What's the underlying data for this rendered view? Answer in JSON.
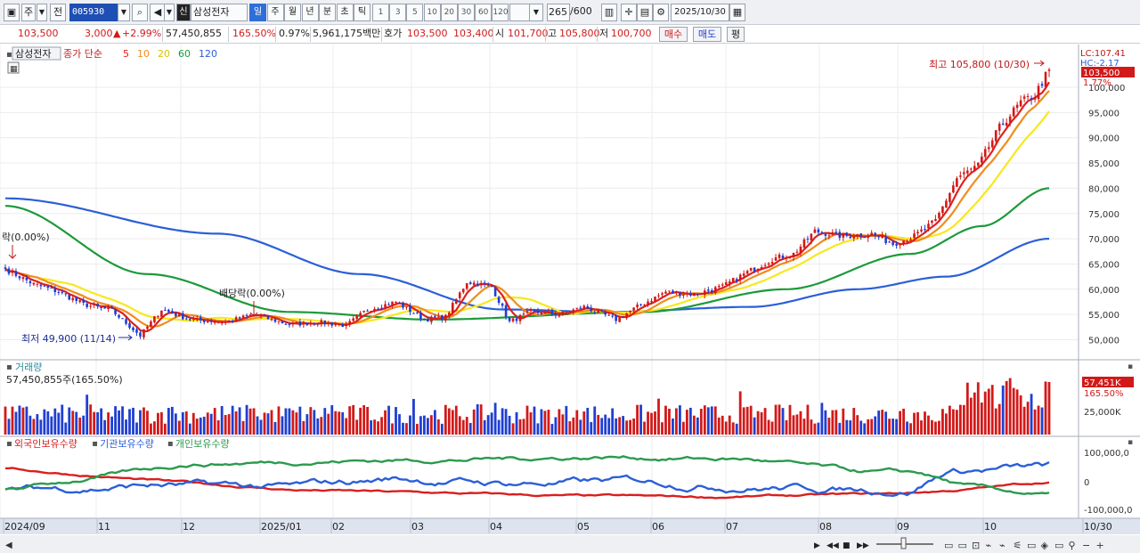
{
  "toolbar": {
    "period_prefix": "주",
    "prev_label": "전",
    "code": "005930",
    "name_badge": "신",
    "name": "삼성전자",
    "periods": [
      "일",
      "주",
      "월",
      "년",
      "분",
      "초",
      "틱"
    ],
    "active_period": "일",
    "intervals": [
      "1",
      "3",
      "5",
      "10",
      "20",
      "30",
      "60",
      "120"
    ],
    "count": "265",
    "count_total": "/600",
    "date": "2025/10/30",
    "icons": [
      "layout-icon",
      "search-icon",
      "speaker-icon",
      "chart-type-icon",
      "crosshair-icon",
      "save-icon",
      "gear-icon",
      "calendar-icon"
    ]
  },
  "quote": {
    "price": "103,500",
    "change": "3,000",
    "change_arrow": "▲",
    "change_pct": "+2.99%",
    "volume": "57,450,855",
    "volume_pct": "165.50%",
    "turnover_pct": "0.97%",
    "amount": "5,961,175백만",
    "ask_label": "호가",
    "ask": "103,500",
    "bid": "103,400",
    "open_label": "시",
    "open": "101,700",
    "high_label": "고",
    "high": "105,800",
    "low_label": "저",
    "low": "100,700",
    "buy_label": "매수",
    "sell_label": "매도",
    "eval_label": "평"
  },
  "colors": {
    "up": "#d21919",
    "down": "#1f3fd1",
    "ma5": "#e0201c",
    "ma10": "#f08c1e",
    "ma20": "#f7e81c",
    "ma60": "#1c9a3a",
    "ma120": "#2a5fd8",
    "foreign": "#d91f1f",
    "inst": "#2a5fd8",
    "indiv": "#2c9a4e"
  },
  "chart_data": [
    {
      "type": "candlestick",
      "title": "삼성전자",
      "legend": {
        "prefix": "종가 단순",
        "items": [
          {
            "name": "5",
            "color": "#e0201c"
          },
          {
            "name": "10",
            "color": "#f08c1e"
          },
          {
            "name": "20",
            "color": "#f7e81c"
          },
          {
            "name": "60",
            "color": "#1c9a3a"
          },
          {
            "name": "120",
            "color": "#2a5fd8"
          }
        ]
      },
      "ylim": [
        48000,
        108000
      ],
      "yticks": [
        50000,
        55000,
        60000,
        65000,
        70000,
        75000,
        80000,
        85000,
        90000,
        95000,
        100000
      ],
      "ytick_labels": [
        "50,000",
        "55,000",
        "60,000",
        "65,000",
        "70,000",
        "75,000",
        "80,000",
        "85,000",
        "90,000",
        "95,000",
        "100,000"
      ],
      "right_labels": {
        "lc": "LC:107.41",
        "hc": "HC:-2.17",
        "price": "103,500",
        "pct": "1.77%"
      },
      "annotations": {
        "high": "최고 105,800 (10/30)",
        "low": "최저 49,900 (11/14)",
        "dividend_1": "락(0.00%)",
        "dividend_2": "배당락(0.00%)"
      },
      "x_labels": [
        "2024/09",
        "11",
        "12",
        "2025/01",
        "02",
        "03",
        "04",
        "05",
        "06",
        "07",
        "08",
        "09",
        "10",
        "10/30"
      ],
      "anchors": [
        {
          "i": 0,
          "c": 64000
        },
        {
          "i": 8,
          "c": 61000
        },
        {
          "i": 15,
          "c": 59500
        },
        {
          "i": 22,
          "c": 57000
        },
        {
          "i": 30,
          "c": 55800
        },
        {
          "i": 38,
          "c": 50800
        },
        {
          "i": 44,
          "c": 56000
        },
        {
          "i": 52,
          "c": 54000
        },
        {
          "i": 62,
          "c": 53500
        },
        {
          "i": 70,
          "c": 55000
        },
        {
          "i": 80,
          "c": 53000
        },
        {
          "i": 88,
          "c": 53500
        },
        {
          "i": 96,
          "c": 52800
        },
        {
          "i": 102,
          "c": 56000
        },
        {
          "i": 110,
          "c": 57500
        },
        {
          "i": 118,
          "c": 54000
        },
        {
          "i": 124,
          "c": 54500
        },
        {
          "i": 130,
          "c": 61500
        },
        {
          "i": 137,
          "c": 60500
        },
        {
          "i": 142,
          "c": 53500
        },
        {
          "i": 148,
          "c": 55500
        },
        {
          "i": 156,
          "c": 55000
        },
        {
          "i": 163,
          "c": 56500
        },
        {
          "i": 172,
          "c": 54000
        },
        {
          "i": 178,
          "c": 56500
        },
        {
          "i": 186,
          "c": 59500
        },
        {
          "i": 194,
          "c": 59000
        },
        {
          "i": 202,
          "c": 60500
        },
        {
          "i": 208,
          "c": 63000
        },
        {
          "i": 216,
          "c": 66000
        },
        {
          "i": 222,
          "c": 67000
        },
        {
          "i": 228,
          "c": 71500
        },
        {
          "i": 236,
          "c": 70500
        },
        {
          "i": 244,
          "c": 71000
        },
        {
          "i": 250,
          "c": 69000
        },
        {
          "i": 256,
          "c": 70500
        },
        {
          "i": 262,
          "c": 73500
        },
        {
          "i": 268,
          "c": 82000
        },
        {
          "i": 274,
          "c": 84500
        },
        {
          "i": 280,
          "c": 92000
        },
        {
          "i": 286,
          "c": 97000
        },
        {
          "i": 290,
          "c": 98500
        },
        {
          "i": 294,
          "c": 103500
        }
      ],
      "ma_anchors": {
        "ma60": [
          {
            "i": 0,
            "v": 76500
          },
          {
            "i": 40,
            "v": 63000
          },
          {
            "i": 80,
            "v": 55500
          },
          {
            "i": 120,
            "v": 54000
          },
          {
            "i": 180,
            "v": 55500
          },
          {
            "i": 220,
            "v": 60000
          },
          {
            "i": 255,
            "v": 67000
          },
          {
            "i": 275,
            "v": 72500
          },
          {
            "i": 294,
            "v": 80000
          }
        ],
        "ma120": [
          {
            "i": 0,
            "v": 78000
          },
          {
            "i": 60,
            "v": 71000
          },
          {
            "i": 100,
            "v": 63000
          },
          {
            "i": 140,
            "v": 56000
          },
          {
            "i": 170,
            "v": 55500
          },
          {
            "i": 210,
            "v": 56500
          },
          {
            "i": 240,
            "v": 60000
          },
          {
            "i": 265,
            "v": 62500
          },
          {
            "i": 294,
            "v": 70000
          }
        ]
      }
    },
    {
      "type": "bar",
      "title": "거래량",
      "label": "57,450,855주(165.50%)",
      "last_value": "57,451K",
      "last_pct": "165.50%",
      "ytick_labels": [
        "25,000K"
      ]
    },
    {
      "type": "line",
      "series": [
        {
          "name": "외국인보유수량",
          "color": "#d91f1f"
        },
        {
          "name": "기관보유수량",
          "color": "#2a5fd8"
        },
        {
          "name": "개인보유수량",
          "color": "#2c9a4e"
        }
      ],
      "ytick_labels": [
        "100,000,0",
        "0",
        "-100,000,0"
      ]
    }
  ]
}
